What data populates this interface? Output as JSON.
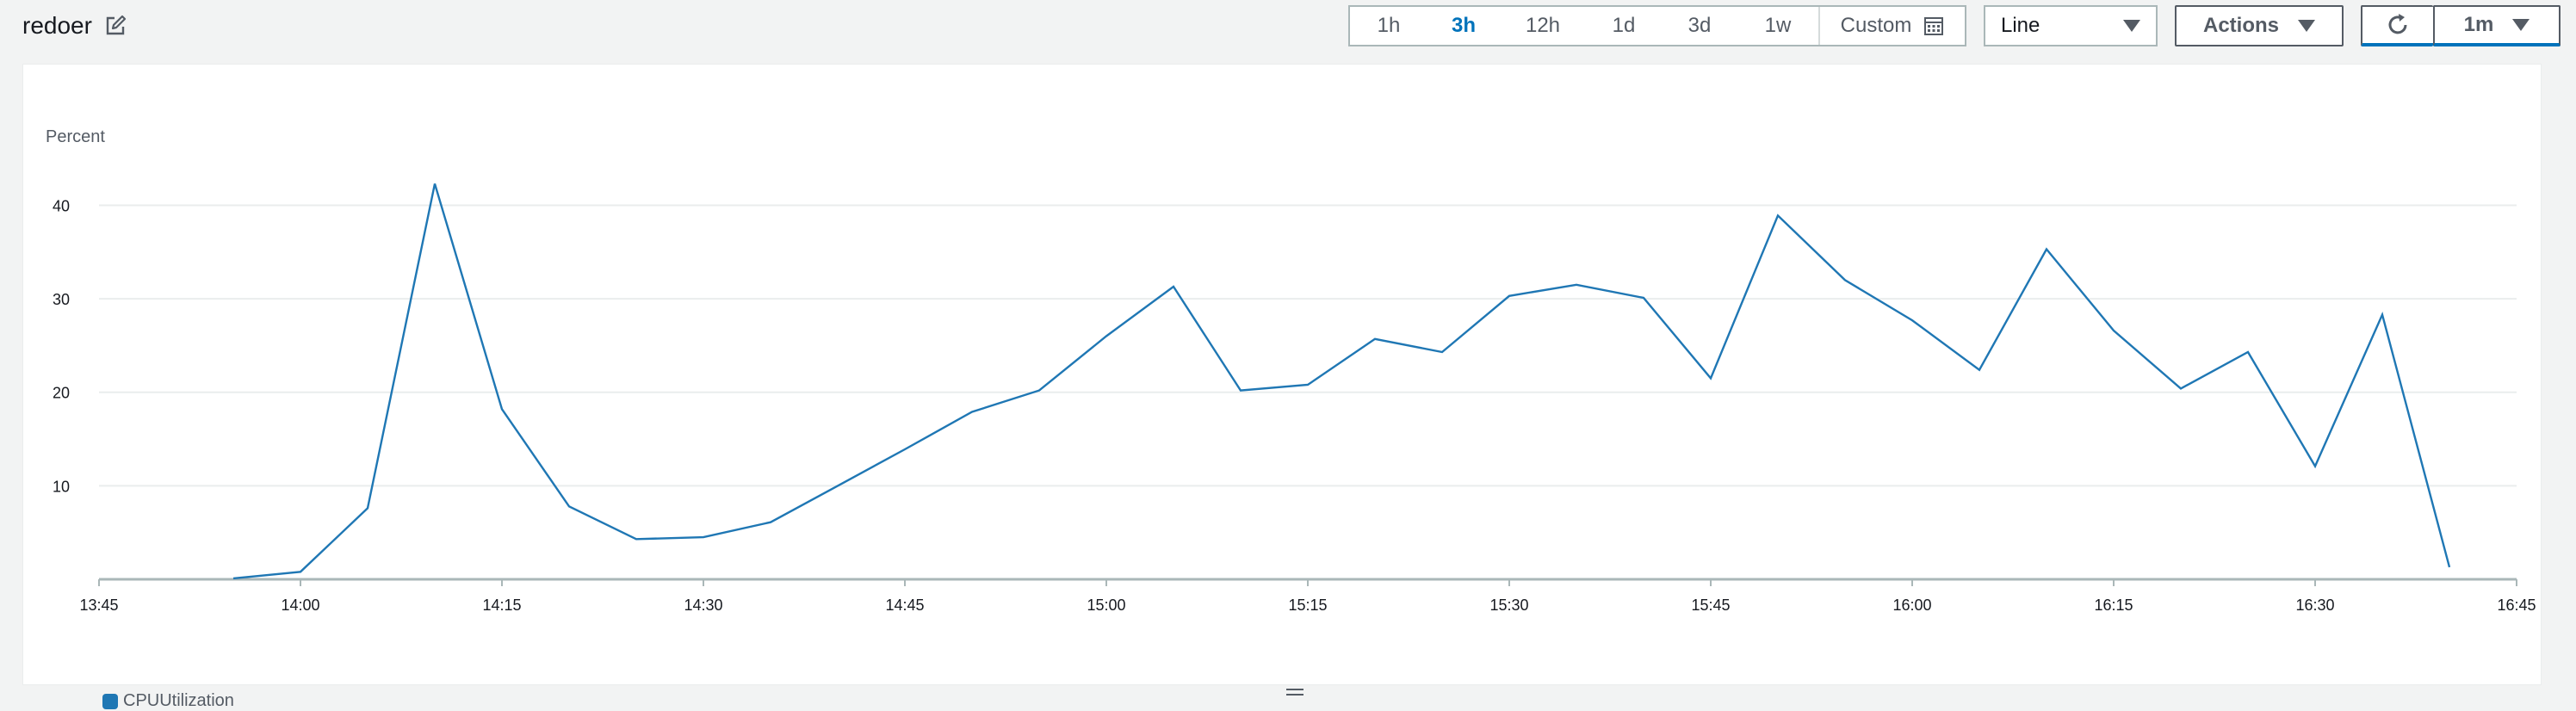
{
  "header": {
    "title": "redoer"
  },
  "time_range": {
    "options": [
      "1h",
      "3h",
      "12h",
      "1d",
      "3d",
      "1w"
    ],
    "selected": "3h",
    "custom_label": "Custom"
  },
  "view_select": {
    "value": "Line"
  },
  "actions": {
    "label": "Actions"
  },
  "refresh": {
    "interval": "1m"
  },
  "colors": {
    "series": "#1f77b4",
    "accent": "#0073bb"
  },
  "chart_data": {
    "type": "line",
    "ylabel": "Percent",
    "xlabel": "",
    "ylim": [
      0,
      44
    ],
    "yticks": [
      10,
      20,
      30,
      40
    ],
    "xticks": [
      "13:45",
      "14:00",
      "14:15",
      "14:30",
      "14:45",
      "15:00",
      "15:15",
      "15:30",
      "15:45",
      "16:00",
      "16:15",
      "16:30",
      "16:45"
    ],
    "grid": true,
    "legend": "bottom-left",
    "series": [
      {
        "name": "CPUUtilization",
        "x": [
          "13:55",
          "14:00",
          "14:05",
          "14:10",
          "14:15",
          "14:20",
          "14:25",
          "14:30",
          "14:35",
          "14:40",
          "14:45",
          "14:50",
          "14:55",
          "15:00",
          "15:05",
          "15:10",
          "15:15",
          "15:20",
          "15:25",
          "15:30",
          "15:35",
          "15:40",
          "15:45",
          "15:50",
          "15:55",
          "16:00",
          "16:05",
          "16:10",
          "16:15",
          "16:20",
          "16:25",
          "16:30",
          "16:35",
          "16:40"
        ],
        "values": [
          0.1,
          0.8,
          7.6,
          42.3,
          18.2,
          7.8,
          4.3,
          4.5,
          6.1,
          10.0,
          13.9,
          17.9,
          20.2,
          26.0,
          31.3,
          20.2,
          20.8,
          25.7,
          24.3,
          30.3,
          31.5,
          30.1,
          21.5,
          38.9,
          32.0,
          27.7,
          22.4,
          35.3,
          26.6,
          20.4,
          24.3,
          12.1,
          28.3,
          1.3
        ]
      }
    ]
  }
}
